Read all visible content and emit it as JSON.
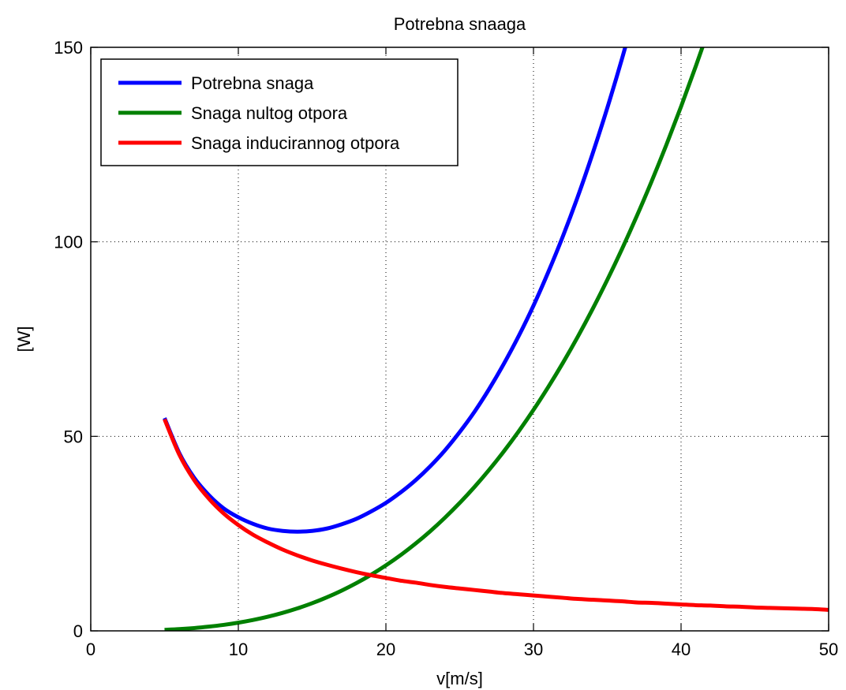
{
  "chart_data": {
    "type": "line",
    "title": "Potrebna snaaga",
    "xlabel": "v[m/s]",
    "ylabel": "[W]",
    "xlim": [
      0,
      50
    ],
    "ylim": [
      0,
      150
    ],
    "xticks": [
      0,
      10,
      20,
      30,
      40,
      50
    ],
    "yticks": [
      0,
      50,
      100,
      150
    ],
    "xtick_labels": [
      "0",
      "10",
      "20",
      "30",
      "40",
      "50"
    ],
    "ytick_labels": [
      "0",
      "50",
      "100",
      "150"
    ],
    "grid": true,
    "legend_position": "top-left",
    "x": [
      5,
      6,
      7,
      8,
      9,
      10,
      11,
      12,
      13,
      14,
      15,
      16,
      17,
      18,
      19,
      20,
      21,
      22,
      23,
      24,
      25,
      26,
      27,
      28,
      29,
      30,
      31,
      32,
      33,
      34,
      35,
      36,
      37,
      38,
      39,
      40,
      41,
      42,
      43,
      44,
      45,
      46,
      47,
      48,
      49,
      50
    ],
    "series": [
      {
        "name": "Potrebna snaga",
        "color": "#0000ff",
        "values": [
          54.7,
          45.7,
          39.4,
          34.9,
          31.5,
          29.2,
          27.5,
          26.3,
          25.7,
          25.5,
          25.7,
          26.3,
          27.4,
          28.8,
          30.7,
          32.9,
          35.6,
          38.7,
          42.3,
          46.4,
          51.1,
          56.3,
          62.2,
          68.7,
          75.8,
          83.6,
          92.2,
          101.5,
          111.6,
          122.6,
          134.4,
          147.1,
          160.8,
          null,
          null,
          null,
          null,
          null,
          null,
          null,
          null,
          null,
          null,
          null,
          null,
          null
        ]
      },
      {
        "name": "Snaga nultog otpora",
        "color": "#008000",
        "values": [
          0.26,
          0.45,
          0.72,
          1.08,
          1.53,
          2.1,
          2.8,
          3.63,
          4.62,
          5.77,
          7.1,
          8.62,
          10.34,
          12.27,
          14.43,
          16.83,
          19.48,
          22.4,
          25.6,
          29.09,
          32.88,
          36.98,
          41.41,
          46.18,
          51.3,
          56.8,
          62.67,
          68.93,
          75.6,
          82.69,
          90.21,
          98.18,
          106.61,
          115.51,
          124.89,
          134.77,
          145.16,
          156.07,
          null,
          null,
          null,
          null,
          null,
          null,
          null,
          null
        ]
      },
      {
        "name": "Snaga inducirannog otpora",
        "color": "#ff0000",
        "values": [
          54.4,
          45.3,
          38.8,
          34.0,
          30.2,
          27.2,
          24.7,
          22.7,
          20.9,
          19.4,
          18.1,
          17.0,
          16.0,
          15.1,
          14.3,
          13.6,
          12.9,
          12.4,
          11.8,
          11.3,
          10.9,
          10.5,
          10.1,
          9.7,
          9.4,
          9.1,
          8.8,
          8.5,
          8.2,
          8.0,
          7.8,
          7.6,
          7.3,
          7.2,
          7.0,
          6.8,
          6.6,
          6.5,
          6.3,
          6.2,
          6.0,
          5.9,
          5.8,
          5.7,
          5.6,
          5.4
        ]
      }
    ]
  }
}
